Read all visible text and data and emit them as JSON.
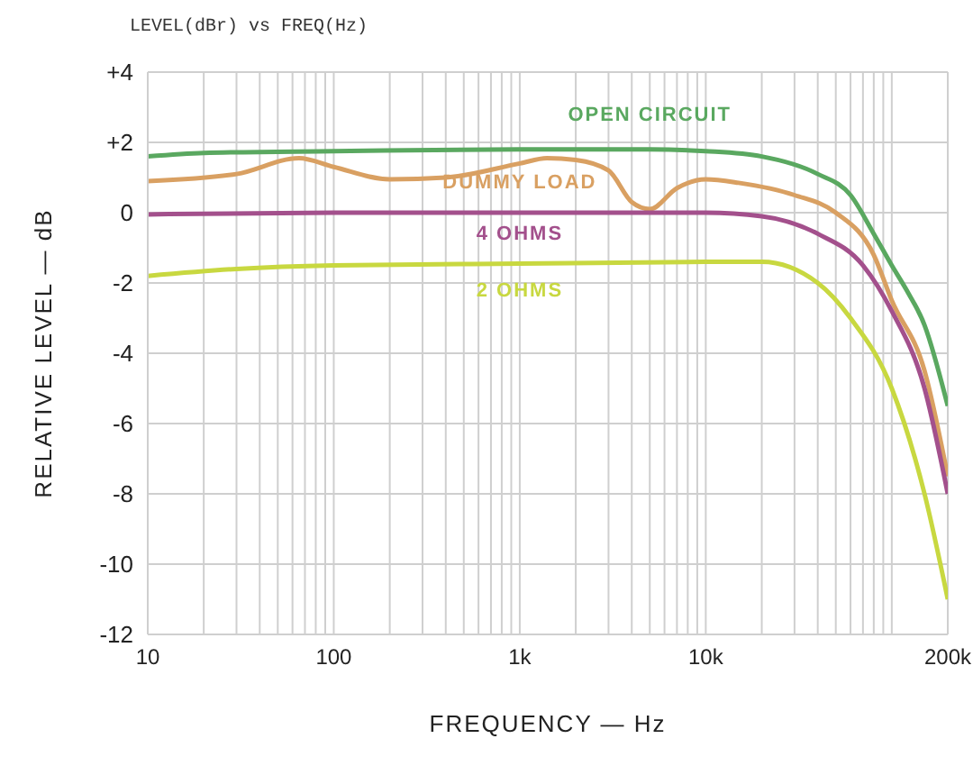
{
  "chart_data": {
    "type": "line",
    "title": "LEVEL(dBr) vs FREQ(Hz)",
    "xlabel": "FREQUENCY — Hz",
    "ylabel": "RELATIVE LEVEL — dB",
    "log": "x",
    "grid": true,
    "legend": false,
    "marker": "none",
    "line_style": "solid",
    "xlim": [
      10,
      200000
    ],
    "ylim": [
      -12,
      4
    ],
    "xticks": [
      {
        "value": 10,
        "label": "10"
      },
      {
        "value": 20,
        "label": null
      },
      {
        "value": 30,
        "label": null
      },
      {
        "value": 40,
        "label": null
      },
      {
        "value": 50,
        "label": null
      },
      {
        "value": 60,
        "label": null
      },
      {
        "value": 70,
        "label": null
      },
      {
        "value": 80,
        "label": null
      },
      {
        "value": 90,
        "label": null
      },
      {
        "value": 100,
        "label": "100"
      },
      {
        "value": 200,
        "label": null
      },
      {
        "value": 300,
        "label": null
      },
      {
        "value": 400,
        "label": null
      },
      {
        "value": 500,
        "label": null
      },
      {
        "value": 600,
        "label": null
      },
      {
        "value": 700,
        "label": null
      },
      {
        "value": 800,
        "label": null
      },
      {
        "value": 900,
        "label": null
      },
      {
        "value": 1000,
        "label": "1k"
      },
      {
        "value": 2000,
        "label": null
      },
      {
        "value": 3000,
        "label": null
      },
      {
        "value": 4000,
        "label": null
      },
      {
        "value": 5000,
        "label": null
      },
      {
        "value": 6000,
        "label": null
      },
      {
        "value": 7000,
        "label": null
      },
      {
        "value": 8000,
        "label": null
      },
      {
        "value": 9000,
        "label": null
      },
      {
        "value": 10000,
        "label": "10k"
      },
      {
        "value": 20000,
        "label": null
      },
      {
        "value": 30000,
        "label": null
      },
      {
        "value": 40000,
        "label": null
      },
      {
        "value": 50000,
        "label": null
      },
      {
        "value": 60000,
        "label": null
      },
      {
        "value": 70000,
        "label": null
      },
      {
        "value": 80000,
        "label": null
      },
      {
        "value": 90000,
        "label": null
      },
      {
        "value": 100000,
        "label": null
      },
      {
        "value": 200000,
        "label": "200k"
      }
    ],
    "yticks": [
      {
        "value": 4,
        "label": "+4"
      },
      {
        "value": 2,
        "label": "+2"
      },
      0,
      -2,
      -4,
      -6,
      -8,
      -10,
      -12
    ],
    "series": [
      {
        "name": "OPEN CIRCUIT",
        "color": "#5aa860",
        "x": [
          10,
          20,
          100,
          1000,
          5000,
          10000,
          20000,
          40000,
          60000,
          80000,
          100000,
          120000,
          150000,
          200000
        ],
        "values": [
          1.6,
          1.7,
          1.75,
          1.8,
          1.8,
          1.75,
          1.6,
          1.1,
          0.5,
          -0.6,
          -1.5,
          -2.2,
          -3.2,
          -5.5
        ]
      },
      {
        "name": "DUMMY LOAD",
        "color": "#d9a062",
        "x": [
          10,
          30,
          65,
          100,
          200,
          400,
          1000,
          1400,
          2000,
          3000,
          4000,
          5000,
          7000,
          10000,
          15000,
          30000,
          50000,
          80000,
          100000,
          150000,
          200000
        ],
        "values": [
          0.9,
          1.1,
          1.55,
          1.3,
          0.95,
          1.0,
          1.4,
          1.55,
          1.5,
          1.2,
          0.3,
          0.1,
          0.7,
          0.95,
          0.85,
          0.5,
          0,
          -1.2,
          -2.5,
          -4.5,
          -7.5
        ]
      },
      {
        "name": "4 OHMS",
        "color": "#a3508c",
        "x": [
          10,
          100,
          1000,
          10000,
          20000,
          40000,
          70000,
          100000,
          150000,
          200000
        ],
        "values": [
          -0.05,
          0,
          0,
          0,
          -0.1,
          -0.6,
          -1.5,
          -2.8,
          -5,
          -8
        ]
      },
      {
        "name": "2 OHMS",
        "color": "#c8d840",
        "x": [
          10,
          30,
          100,
          1000,
          10000,
          20000,
          40000,
          60000,
          100000,
          150000,
          200000
        ],
        "values": [
          -1.8,
          -1.6,
          -1.5,
          -1.45,
          -1.4,
          -1.4,
          -2,
          -3,
          -5,
          -8,
          -11
        ]
      }
    ]
  }
}
